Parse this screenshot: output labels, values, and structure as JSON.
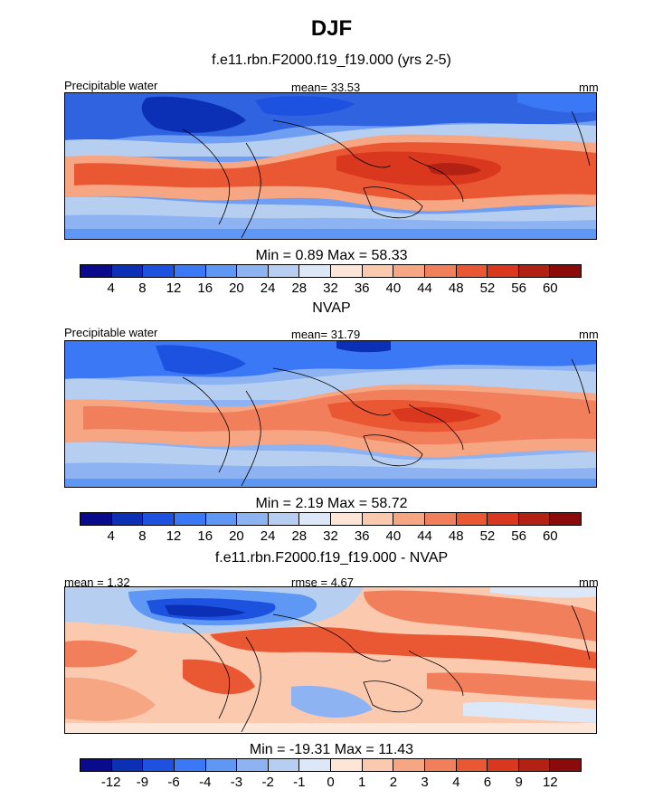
{
  "figure": {
    "title": "DJF",
    "panel1": {
      "subtitle": "f.e11.rbn.F2000.f19_f19.000 (yrs 2-5)",
      "left_label": "Precipitable water",
      "center_label": "mean=  33.53",
      "right_label": "mm",
      "minmax": "Min =   0.89 Max =  58.33"
    },
    "panel2": {
      "subtitle": "NVAP",
      "left_label": "Precipitable water",
      "center_label": "mean=  31.79",
      "right_label": "mm",
      "minmax": "Min =   2.19 Max =  58.72"
    },
    "panel3": {
      "subtitle": "f.e11.rbn.F2000.f19_f19.000 - NVAP",
      "left_label": "mean =   1.32",
      "center_label": "rmse =   4.67",
      "right_label": "mm",
      "minmax": "Min = -19.31 Max =  11.43"
    },
    "colorbar_abs": {
      "labels": [
        "4",
        "8",
        "12",
        "16",
        "20",
        "24",
        "28",
        "32",
        "36",
        "40",
        "44",
        "48",
        "52",
        "56",
        "60"
      ],
      "colors": [
        "#0a0a8c",
        "#0b2fb5",
        "#1d52e0",
        "#3a78f5",
        "#5f97f5",
        "#8db3f2",
        "#b6cff0",
        "#dce8f7",
        "#fde6d8",
        "#fbc9ae",
        "#f7a683",
        "#f27f5b",
        "#ea5733",
        "#d9381e",
        "#b32014",
        "#8c0a0a"
      ]
    },
    "colorbar_diff": {
      "labels": [
        "-12",
        "-9",
        "-6",
        "-4",
        "-3",
        "-2",
        "-1",
        "0",
        "1",
        "2",
        "3",
        "4",
        "6",
        "9",
        "12"
      ],
      "colors": [
        "#0a0a8c",
        "#0b2fb5",
        "#1d52e0",
        "#3a78f5",
        "#5f97f5",
        "#8db3f2",
        "#b6cff0",
        "#dce8f7",
        "#fde6d8",
        "#fbc9ae",
        "#f7a683",
        "#f27f5b",
        "#ea5733",
        "#d9381e",
        "#b32014",
        "#8c0a0a"
      ]
    }
  }
}
